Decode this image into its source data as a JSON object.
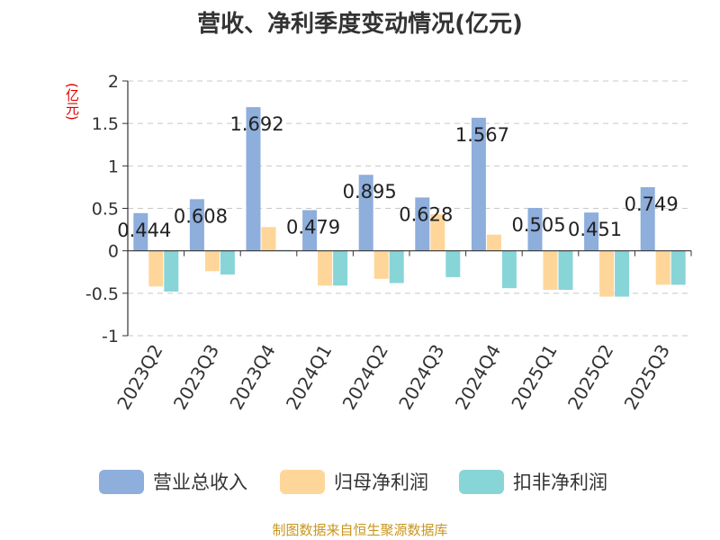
{
  "chart_data": {
    "type": "bar",
    "title": "营收、净利季度变动情况(亿元)",
    "ylabel": "(亿元)",
    "ylim": [
      -1,
      2
    ],
    "yticks": [
      "-1",
      "-0.5",
      "0",
      "0.5",
      "1",
      "1.5",
      "2"
    ],
    "ytick_values": [
      -1,
      -0.5,
      0,
      0.5,
      1,
      1.5,
      2
    ],
    "categories": [
      "2023Q2",
      "2023Q3",
      "2023Q4",
      "2024Q1",
      "2024Q2",
      "2024Q3",
      "2024Q4",
      "2025Q1",
      "2025Q2",
      "2025Q3"
    ],
    "series": [
      {
        "name": "营业总收入",
        "color": "#8eaedc",
        "values": [
          0.444,
          0.608,
          1.692,
          0.479,
          0.895,
          0.628,
          1.567,
          0.505,
          0.451,
          0.749
        ]
      },
      {
        "name": "归母净利润",
        "color": "#ffd699",
        "values": [
          -0.42,
          -0.24,
          0.28,
          -0.41,
          -0.33,
          0.43,
          0.19,
          -0.46,
          -0.54,
          -0.4
        ]
      },
      {
        "name": "扣非净利润",
        "color": "#88d5d8",
        "values": [
          -0.48,
          -0.28,
          0.01,
          -0.41,
          -0.38,
          -0.31,
          -0.44,
          -0.46,
          -0.54,
          -0.4
        ]
      }
    ],
    "data_labels": [
      "0.444",
      "0.608",
      "1.692",
      "0.479",
      "0.895",
      "0.628",
      "1.567",
      "0.505",
      "0.451",
      "0.749"
    ],
    "grid": true,
    "legend": "bottom"
  },
  "source": "制图数据来自恒生聚源数据库"
}
